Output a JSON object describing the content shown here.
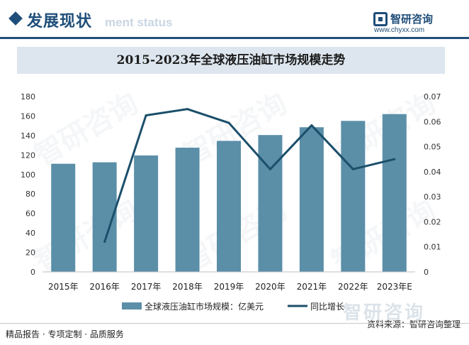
{
  "header": {
    "section_title": "发展现状",
    "section_subtitle": "ment status",
    "logo_name": "智研咨询",
    "logo_url": "www.chyxx.com"
  },
  "chart_title": "2015-2023年全球液压油缸市场规模走势",
  "footer": {
    "left_text": "精品报告 · 专项定制 · 品质服务",
    "right_text": "资料来源：智研咨询整理",
    "brand_watermark": "智研咨询"
  },
  "colors": {
    "bar": "#5b8fa8",
    "line": "#1b4f6b",
    "accent": "#1f4e79"
  },
  "chart_data": {
    "type": "bar",
    "categories": [
      "2015年",
      "2016年",
      "2017年",
      "2018年",
      "2019年",
      "2020年",
      "2021年",
      "2022年",
      "2023年E"
    ],
    "series": [
      {
        "name": "全球液压油缸市场规模：亿美元",
        "type": "bar",
        "axis": "left",
        "values": [
          111,
          112.5,
          119.5,
          127.5,
          134.5,
          140.5,
          148.5,
          155,
          162
        ]
      },
      {
        "name": "同比增长",
        "type": "line",
        "axis": "right",
        "values": [
          null,
          0.012,
          0.0625,
          0.065,
          0.0595,
          0.041,
          0.0585,
          0.041,
          0.045
        ]
      }
    ],
    "y_left": {
      "min": 0,
      "max": 180,
      "ticks": [
        "0",
        "20",
        "40",
        "60",
        "80",
        "100",
        "120",
        "140",
        "160",
        "180"
      ]
    },
    "y_right": {
      "min": 0,
      "max": 0.07,
      "ticks": [
        "0",
        "0.01",
        "0.02",
        "0.03",
        "0.04",
        "0.05",
        "0.06",
        "0.07"
      ]
    },
    "grid": false,
    "legend_position": "bottom"
  }
}
